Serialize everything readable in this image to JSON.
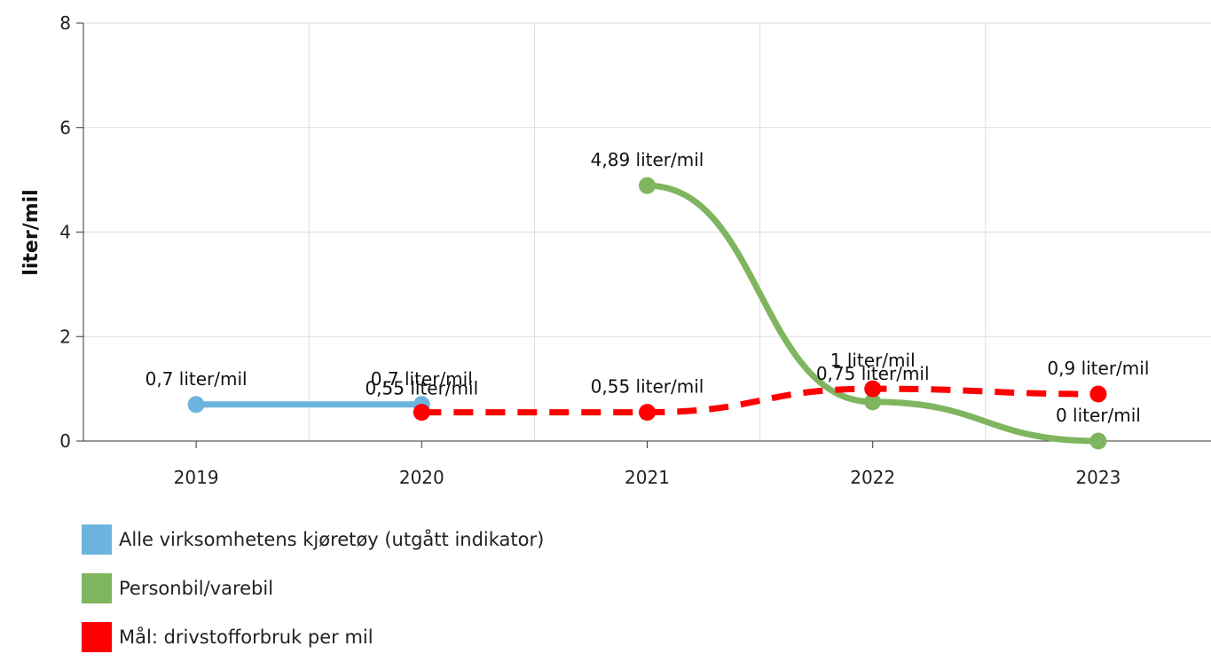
{
  "chart_data": {
    "type": "line",
    "title": "",
    "xlabel": "",
    "ylabel": "liter/mil",
    "categories": [
      "2019",
      "2020",
      "2021",
      "2022",
      "2023"
    ],
    "ylim": [
      0,
      8
    ],
    "yticks": [
      "0",
      "2",
      "4",
      "6",
      "8"
    ],
    "grid": true,
    "legend_position": "bottom-left",
    "series": [
      {
        "name": "Alle virksomhetens kjøretøy (utgått indikator)",
        "color": "#6cb4dd",
        "style": "solid",
        "values": [
          0.7,
          0.7,
          null,
          null,
          null
        ],
        "labels": [
          "0,7 liter/mil",
          "0,7 liter/mil",
          null,
          null,
          null
        ]
      },
      {
        "name": "Personbil/varebil",
        "color": "#7fb55e",
        "style": "solid",
        "values": [
          null,
          null,
          4.89,
          0.75,
          0
        ],
        "labels": [
          null,
          null,
          "4,89 liter/mil",
          "0,75 liter/mil",
          "0 liter/mil"
        ]
      },
      {
        "name": "Mål: drivstofforbruk per mil",
        "color": "#ff0000",
        "style": "dashed",
        "values": [
          null,
          0.55,
          0.55,
          1,
          0.9
        ],
        "labels": [
          null,
          "0,55 liter/mil",
          "0,55 liter/mil",
          "1 liter/mil",
          "0,9 liter/mil"
        ]
      }
    ]
  }
}
